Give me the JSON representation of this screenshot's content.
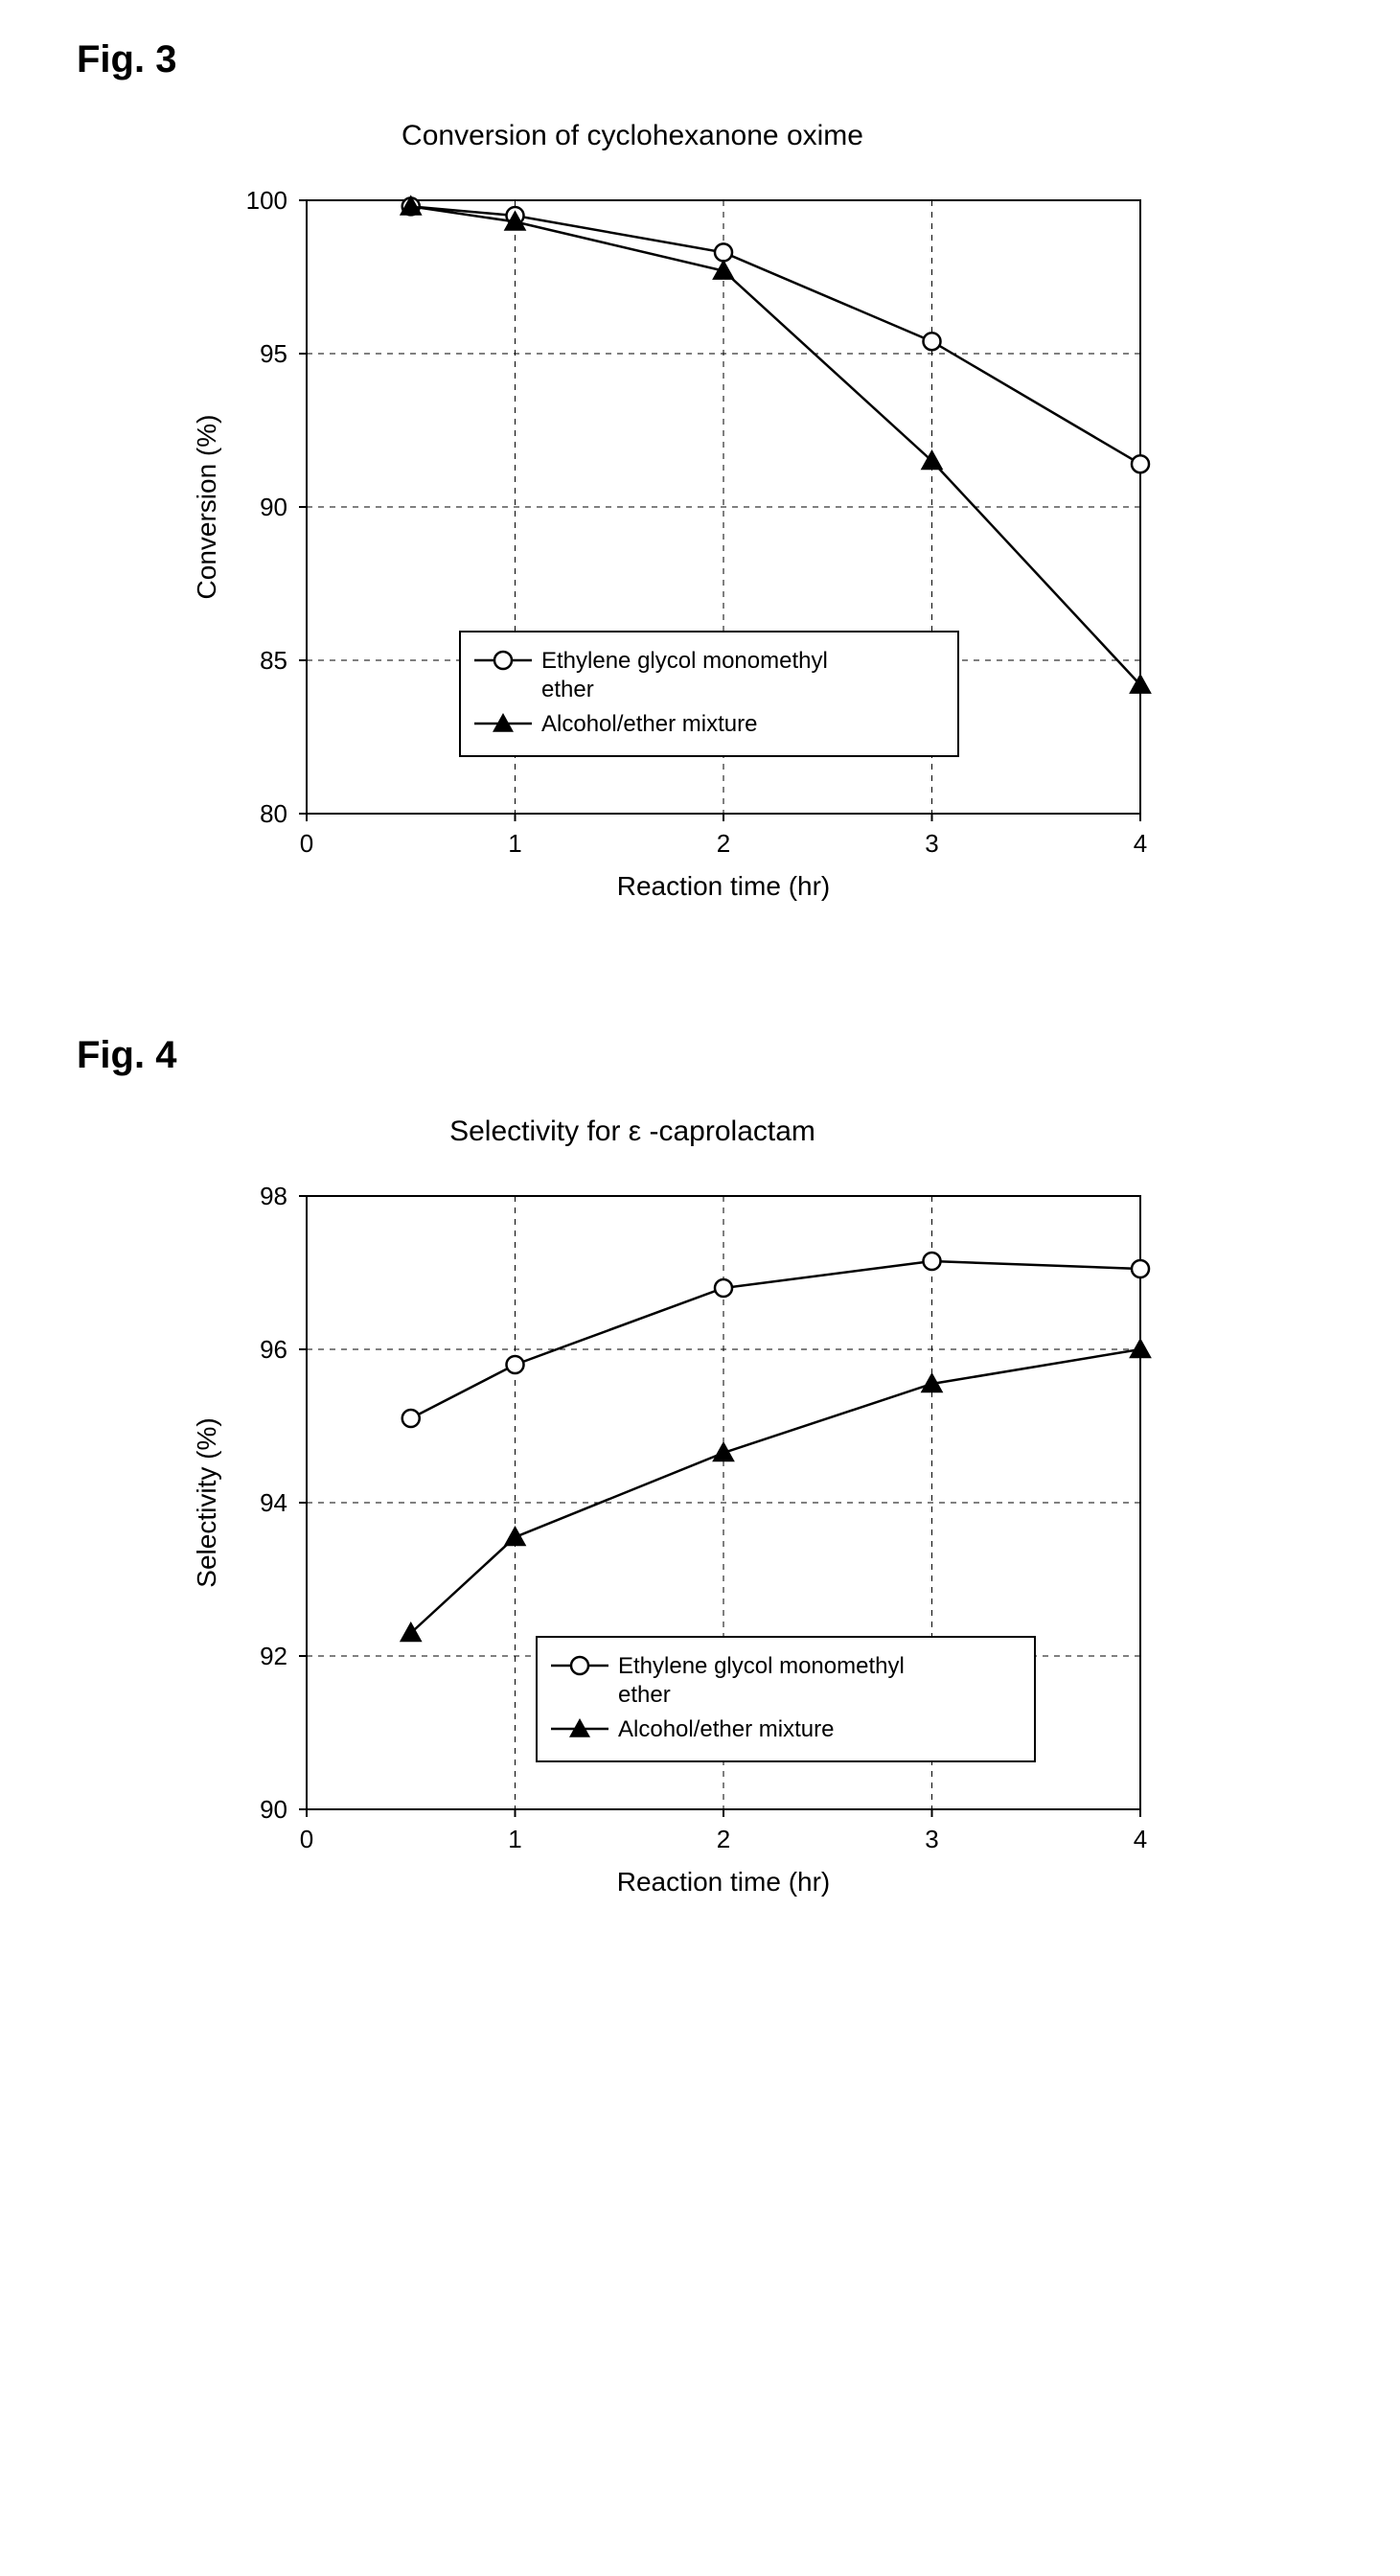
{
  "fig3": {
    "label": "Fig. 3",
    "title": "Conversion of cyclohexanone oxime",
    "xlabel": "Reaction time (hr)",
    "ylabel": "Conversion (%)",
    "xlim": [
      0,
      4
    ],
    "ylim": [
      80,
      100
    ],
    "xticks": [
      0,
      1,
      2,
      3,
      4
    ],
    "yticks": [
      80,
      85,
      90,
      95,
      100
    ],
    "grid_color": "#000000",
    "grid_dash": "6,6",
    "background_color": "#ffffff",
    "plot_border_color": "#000000",
    "line_width": 2.5,
    "label_fontsize": 28,
    "tick_fontsize": 26,
    "legend": {
      "items": [
        {
          "marker": "open-circle",
          "label": "Ethylene glycol monomethyl ether"
        },
        {
          "marker": "filled-triangle",
          "label": "Alcohol/ether mixture"
        }
      ],
      "border_color": "#000000",
      "fontsize": 24,
      "pos": "lower-center-left"
    },
    "series": [
      {
        "name": "Ethylene glycol monomethyl ether",
        "marker": "open-circle",
        "marker_color": "#000000",
        "marker_fill": "#ffffff",
        "line_color": "#000000",
        "x": [
          0.5,
          1,
          2,
          3,
          4
        ],
        "y": [
          99.8,
          99.5,
          98.3,
          95.4,
          91.4
        ]
      },
      {
        "name": "Alcohol/ether mixture",
        "marker": "filled-triangle",
        "marker_color": "#000000",
        "marker_fill": "#000000",
        "line_color": "#000000",
        "x": [
          0.5,
          1,
          2,
          3,
          4
        ],
        "y": [
          99.8,
          99.3,
          97.7,
          91.5,
          84.2
        ]
      }
    ]
  },
  "fig4": {
    "label": "Fig. 4",
    "title": "Selectivity for ε -caprolactam",
    "xlabel": "Reaction time (hr)",
    "ylabel": "Selectivity (%)",
    "xlim": [
      0,
      4
    ],
    "ylim": [
      90,
      98
    ],
    "xticks": [
      0,
      1,
      2,
      3,
      4
    ],
    "yticks": [
      90,
      92,
      94,
      96,
      98
    ],
    "grid_color": "#000000",
    "grid_dash": "6,6",
    "background_color": "#ffffff",
    "plot_border_color": "#000000",
    "line_width": 2.5,
    "label_fontsize": 28,
    "tick_fontsize": 26,
    "legend": {
      "items": [
        {
          "marker": "open-circle",
          "label": "Ethylene glycol monomethyl ether"
        },
        {
          "marker": "filled-triangle",
          "label": "Alcohol/ether mixture"
        }
      ],
      "border_color": "#000000",
      "fontsize": 24,
      "pos": "lower-center"
    },
    "series": [
      {
        "name": "Ethylene glycol monomethyl ether",
        "marker": "open-circle",
        "marker_color": "#000000",
        "marker_fill": "#ffffff",
        "line_color": "#000000",
        "x": [
          0.5,
          1,
          2,
          3,
          4
        ],
        "y": [
          95.1,
          95.8,
          96.8,
          97.15,
          97.05
        ]
      },
      {
        "name": "Alcohol/ether mixture",
        "marker": "filled-triangle",
        "marker_color": "#000000",
        "marker_fill": "#000000",
        "line_color": "#000000",
        "x": [
          0.5,
          1,
          2,
          3,
          4
        ],
        "y": [
          92.3,
          93.55,
          94.65,
          95.55,
          96.0
        ]
      }
    ]
  }
}
